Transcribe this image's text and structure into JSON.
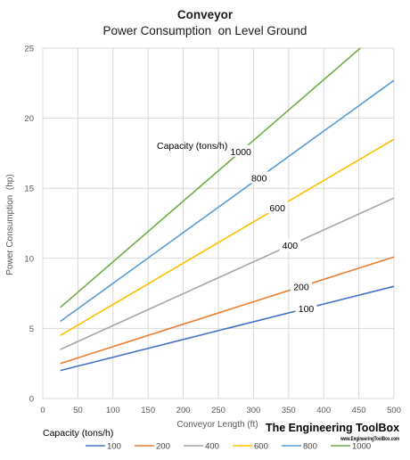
{
  "chart_data": {
    "type": "line",
    "title": "Conveyor",
    "subtitle": "Power Consumption  on Level Ground",
    "xlabel": "Conveyor Length (ft)",
    "ylabel": "Power Consumption  (hp)",
    "xlim": [
      0,
      500
    ],
    "ylim": [
      0,
      25
    ],
    "xticks": [
      0,
      50,
      100,
      150,
      200,
      250,
      300,
      350,
      400,
      450,
      500
    ],
    "yticks": [
      0,
      5,
      10,
      15,
      20,
      25
    ],
    "grid": true,
    "legend_title": "Capacity (tons/h)",
    "legend_position": "bottom",
    "annotation_title": "Capacity (tons/h)",
    "x": [
      25,
      500
    ],
    "series": [
      {
        "name": "100",
        "color": "#4472c4",
        "x": [
          25,
          500
        ],
        "values": [
          2.0,
          8.0
        ],
        "label": "100",
        "label_at": 375
      },
      {
        "name": "200",
        "color": "#ed7d31",
        "x": [
          25,
          500
        ],
        "values": [
          2.5,
          10.1
        ],
        "label": "200",
        "label_at": 368
      },
      {
        "name": "400",
        "color": "#a5a5a5",
        "x": [
          25,
          500
        ],
        "values": [
          3.5,
          14.3
        ],
        "label": "400",
        "label_at": 352
      },
      {
        "name": "600",
        "color": "#ffc000",
        "x": [
          25,
          500
        ],
        "values": [
          4.5,
          18.5
        ],
        "label": "600",
        "label_at": 334
      },
      {
        "name": "800",
        "color": "#5b9bd5",
        "x": [
          25,
          500
        ],
        "values": [
          5.5,
          22.7
        ],
        "label": "800",
        "label_at": 308
      },
      {
        "name": "1000",
        "color": "#70ad47",
        "x": [
          25,
          452
        ],
        "values": [
          6.5,
          25.0
        ],
        "label": "1000",
        "label_at": 282
      }
    ]
  },
  "branding": {
    "name": "The Engineering ToolBox",
    "url": "www.EngineeringToolBox.com"
  }
}
